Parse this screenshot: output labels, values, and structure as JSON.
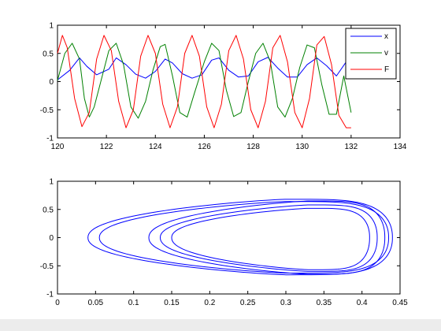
{
  "chart_data": [
    {
      "type": "line",
      "title": "",
      "xlabel": "",
      "ylabel": "",
      "xlim": [
        120,
        134
      ],
      "ylim": [
        -1,
        1
      ],
      "xticks": [
        "120",
        "122",
        "124",
        "126",
        "128",
        "130",
        "132",
        "134"
      ],
      "yticks": [
        "-1",
        "-0.5",
        "0",
        "0.5",
        "1"
      ],
      "grid": false,
      "legend_position": "top-right",
      "x_range": [
        120,
        132
      ],
      "period": 1.55,
      "series": [
        {
          "name": "x",
          "color": "#0000ff",
          "description": "small oscillation between ~0.06 and ~0.43",
          "x": [
            120.0,
            120.5,
            120.9,
            121.2,
            121.6,
            122.1,
            122.4,
            122.8,
            123.2,
            123.6,
            124.0,
            124.4,
            124.7,
            125.1,
            125.5,
            125.9,
            126.3,
            126.6,
            127.0,
            127.4,
            127.8,
            128.2,
            128.6,
            129.0,
            129.4,
            129.8,
            130.2,
            130.6,
            131.0,
            131.4,
            131.8,
            132.0
          ],
          "y": [
            0.03,
            0.2,
            0.42,
            0.27,
            0.12,
            0.22,
            0.42,
            0.3,
            0.13,
            0.06,
            0.18,
            0.4,
            0.33,
            0.14,
            0.06,
            0.12,
            0.38,
            0.42,
            0.2,
            0.08,
            0.1,
            0.35,
            0.43,
            0.24,
            0.08,
            0.08,
            0.3,
            0.42,
            0.28,
            0.1,
            0.35,
            0.43
          ]
        },
        {
          "name": "v",
          "color": "#008000",
          "description": "phase-shifted oscillation between ~-0.65 and ~0.68",
          "x": [
            120.0,
            120.3,
            120.6,
            120.9,
            121.1,
            121.3,
            121.5,
            121.8,
            122.1,
            122.4,
            122.7,
            123.0,
            123.3,
            123.6,
            123.9,
            124.2,
            124.4,
            124.7,
            125.0,
            125.3,
            125.6,
            126.0,
            126.3,
            126.6,
            126.9,
            127.2,
            127.5,
            127.8,
            128.1,
            128.4,
            128.7,
            129.0,
            129.3,
            129.6,
            129.9,
            130.2,
            130.5,
            130.8,
            131.1,
            131.4,
            131.7,
            132.0
          ],
          "y": [
            0.02,
            0.5,
            0.68,
            0.4,
            -0.3,
            -0.63,
            -0.45,
            0.05,
            0.55,
            0.68,
            0.3,
            -0.45,
            -0.65,
            -0.35,
            0.2,
            0.62,
            0.66,
            0.1,
            -0.55,
            -0.63,
            -0.2,
            0.35,
            0.68,
            0.55,
            -0.15,
            -0.62,
            -0.55,
            0.0,
            0.5,
            0.68,
            0.35,
            -0.45,
            -0.63,
            -0.3,
            0.25,
            0.65,
            0.6,
            -0.05,
            -0.58,
            -0.58,
            0.1,
            -0.55
          ]
        },
        {
          "name": "F",
          "color": "#ff0000",
          "description": "large oscillation between ~-0.82 and ~0.82",
          "x": [
            120.0,
            120.2,
            120.4,
            120.7,
            121.0,
            121.3,
            121.6,
            121.9,
            122.2,
            122.5,
            122.8,
            123.1,
            123.4,
            123.7,
            124.0,
            124.3,
            124.6,
            124.9,
            125.2,
            125.5,
            125.8,
            126.1,
            126.4,
            126.7,
            127.0,
            127.3,
            127.6,
            127.9,
            128.2,
            128.5,
            128.8,
            129.1,
            129.4,
            129.7,
            130.0,
            130.3,
            130.6,
            130.9,
            131.2,
            131.5,
            131.8,
            132.0
          ],
          "y": [
            0.5,
            0.82,
            0.6,
            -0.3,
            -0.8,
            -0.55,
            0.4,
            0.82,
            0.55,
            -0.35,
            -0.82,
            -0.5,
            0.45,
            0.82,
            0.5,
            -0.4,
            -0.82,
            -0.45,
            0.5,
            0.82,
            0.45,
            -0.45,
            -0.82,
            -0.4,
            0.55,
            0.82,
            0.4,
            -0.5,
            -0.82,
            -0.35,
            0.6,
            0.82,
            0.35,
            -0.55,
            -0.82,
            -0.3,
            0.65,
            0.8,
            0.3,
            -0.6,
            -0.82,
            -0.82
          ]
        }
      ]
    },
    {
      "type": "line",
      "title": "",
      "xlabel": "",
      "ylabel": "",
      "xlim": [
        0,
        0.45
      ],
      "ylim": [
        -1,
        1
      ],
      "xticks": [
        "0",
        "0.05",
        "0.1",
        "0.15",
        "0.2",
        "0.25",
        "0.3",
        "0.35",
        "0.4",
        "0.45"
      ],
      "yticks": [
        "-1",
        "-0.5",
        "0",
        "0.5",
        "1"
      ],
      "grid": false,
      "series": [
        {
          "color": "#0000ff",
          "description": "phase portrait: nested closed loops",
          "loops": [
            {
              "x_min": 0.04,
              "x_max": 0.44,
              "y_top": 0.68,
              "y_bottom": -0.66,
              "x_peak": 0.3
            },
            {
              "x_min": 0.055,
              "x_max": 0.435,
              "y_top": 0.64,
              "y_bottom": -0.63,
              "x_peak": 0.3
            },
            {
              "x_min": 0.12,
              "x_max": 0.43,
              "y_top": 0.65,
              "y_bottom": -0.65,
              "x_peak": 0.33
            },
            {
              "x_min": 0.135,
              "x_max": 0.42,
              "y_top": 0.58,
              "y_bottom": -0.6,
              "x_peak": 0.33
            },
            {
              "x_min": 0.15,
              "x_max": 0.41,
              "y_top": 0.52,
              "y_bottom": -0.57,
              "x_peak": 0.33
            }
          ]
        }
      ]
    }
  ]
}
